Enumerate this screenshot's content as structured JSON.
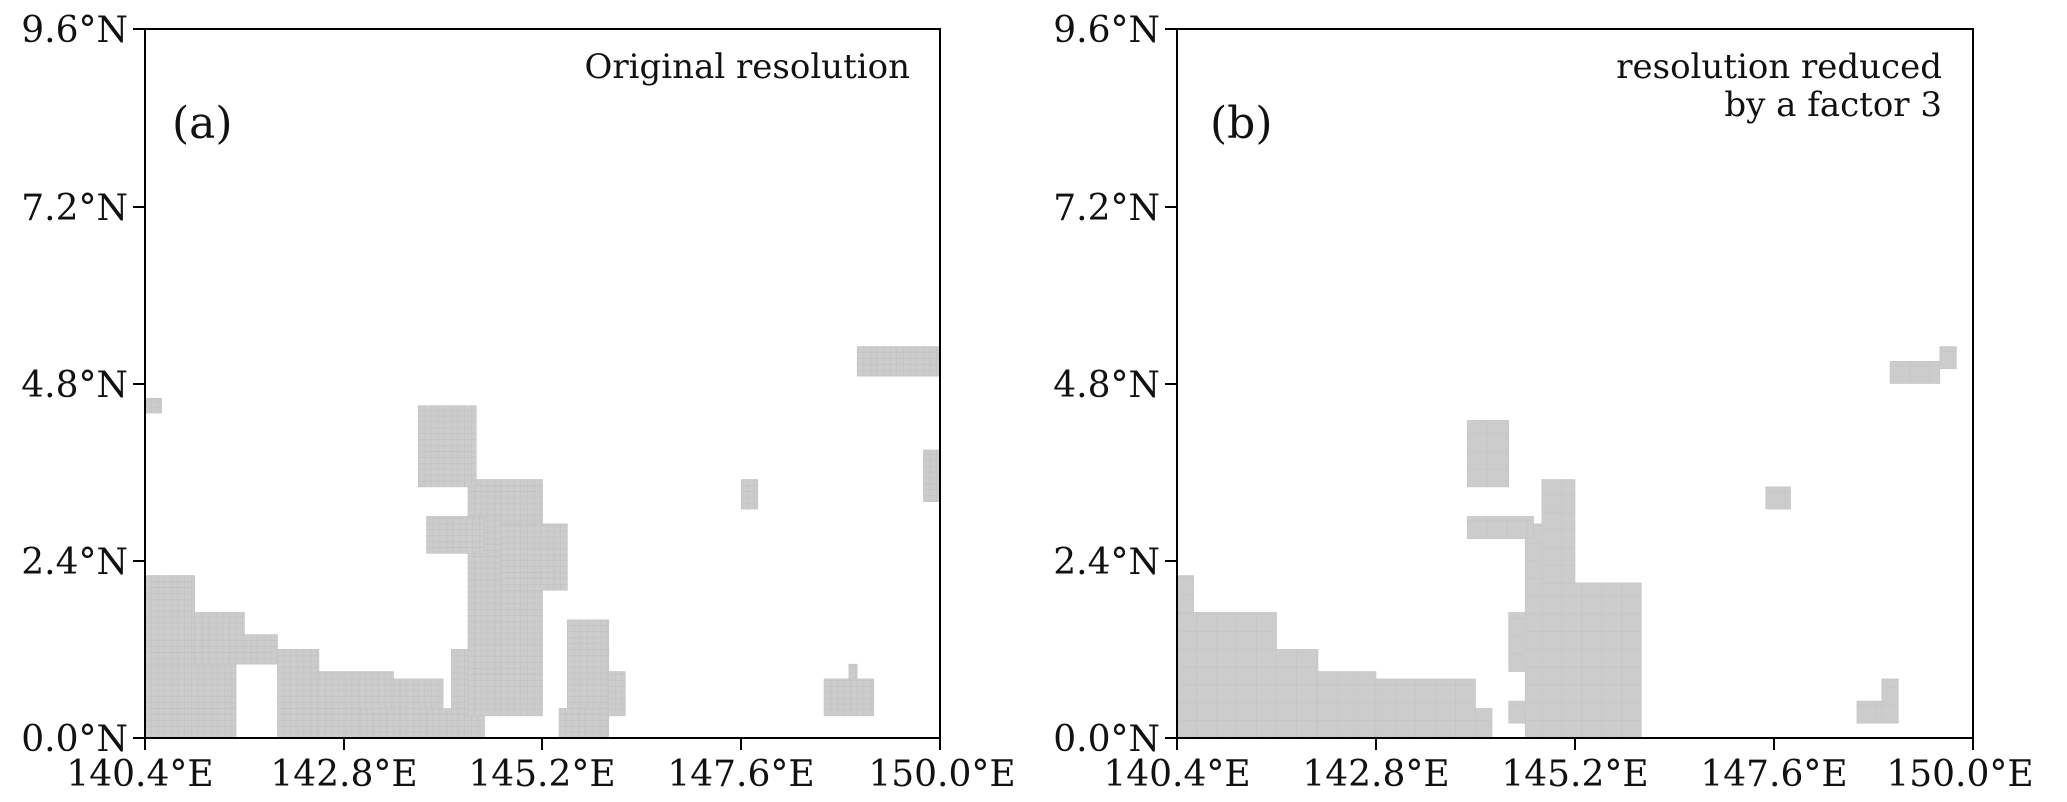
{
  "chart_data": [
    {
      "type": "heatmap",
      "panel_label": "(a)",
      "annotation": [
        "Original resolution"
      ],
      "xlim": [
        140.4,
        150.0
      ],
      "ylim": [
        0.0,
        9.6
      ],
      "x_ticks": [
        "140.4°E",
        "142.8°E",
        "145.2°E",
        "147.6°E",
        "150.0°E"
      ],
      "y_ticks": [
        "0.0°N",
        "2.4°N",
        "4.8°N",
        "7.2°N",
        "9.6°N"
      ],
      "cell_color": "#cccccc",
      "cell_size_deg": 0.08,
      "mask_regions_deg": [
        [
          140.4,
          0.0,
          141.5,
          1.0
        ],
        [
          140.4,
          1.0,
          141.0,
          2.2
        ],
        [
          141.0,
          1.0,
          141.1,
          1.7
        ],
        [
          141.1,
          1.0,
          141.6,
          1.7
        ],
        [
          141.6,
          1.0,
          142.0,
          1.4
        ],
        [
          142.0,
          0.0,
          142.5,
          1.2
        ],
        [
          142.5,
          0.0,
          143.4,
          0.9
        ],
        [
          143.4,
          0.0,
          143.7,
          0.8
        ],
        [
          143.7,
          0.0,
          144.0,
          0.8
        ],
        [
          143.0,
          0.0,
          144.2,
          0.4
        ],
        [
          144.1,
          0.0,
          144.5,
          1.2
        ],
        [
          144.3,
          0.3,
          145.2,
          3.5
        ],
        [
          144.4,
          3.5,
          144.8,
          3.2
        ],
        [
          143.8,
          2.5,
          144.5,
          3.0
        ],
        [
          144.7,
          2.0,
          145.5,
          2.9
        ],
        [
          145.5,
          0.0,
          146.0,
          1.6
        ],
        [
          146.0,
          0.3,
          146.2,
          0.9
        ],
        [
          145.4,
          0.0,
          145.9,
          0.4
        ],
        [
          143.7,
          3.4,
          144.4,
          4.5
        ],
        [
          147.6,
          3.1,
          147.8,
          3.5
        ],
        [
          148.6,
          0.3,
          149.2,
          0.8
        ],
        [
          148.9,
          0.8,
          149.0,
          1.0
        ],
        [
          149.0,
          4.9,
          150.0,
          5.3
        ],
        [
          149.8,
          3.2,
          150.0,
          3.9
        ],
        [
          140.4,
          4.4,
          140.6,
          4.6
        ]
      ]
    },
    {
      "type": "heatmap",
      "panel_label": "(b)",
      "annotation": [
        "resolution reduced",
        "by a factor 3"
      ],
      "xlim": [
        140.4,
        150.0
      ],
      "ylim": [
        0.0,
        9.6
      ],
      "x_ticks": [
        "140.4°E",
        "142.8°E",
        "145.2°E",
        "147.6°E",
        "150.0°E"
      ],
      "y_ticks": [
        "0.0°N",
        "2.4°N",
        "4.8°N",
        "7.2°N",
        "9.6°N"
      ],
      "cell_color": "#cccccc",
      "cell_size_deg": 0.24,
      "mask_regions_deg": [
        [
          140.4,
          0.0,
          141.6,
          1.7
        ],
        [
          140.4,
          1.7,
          140.6,
          2.2
        ],
        [
          141.6,
          0.0,
          142.1,
          1.2
        ],
        [
          142.1,
          0.0,
          142.8,
          0.9
        ],
        [
          142.8,
          0.0,
          144.0,
          0.8
        ],
        [
          144.0,
          0.0,
          144.2,
          0.4
        ],
        [
          144.4,
          0.2,
          144.6,
          0.5
        ],
        [
          144.4,
          0.9,
          144.7,
          1.7
        ],
        [
          144.6,
          0.0,
          144.8,
          2.9
        ],
        [
          144.8,
          0.0,
          146.0,
          2.1
        ],
        [
          144.8,
          2.1,
          145.2,
          3.5
        ],
        [
          143.9,
          2.7,
          144.7,
          3.0
        ],
        [
          143.9,
          3.4,
          144.4,
          4.3
        ],
        [
          147.5,
          3.1,
          147.8,
          3.4
        ],
        [
          148.6,
          0.2,
          148.9,
          0.5
        ],
        [
          148.9,
          0.2,
          149.1,
          0.8
        ],
        [
          149.0,
          4.8,
          149.6,
          5.1
        ],
        [
          149.6,
          5.0,
          149.8,
          5.3
        ]
      ]
    }
  ]
}
